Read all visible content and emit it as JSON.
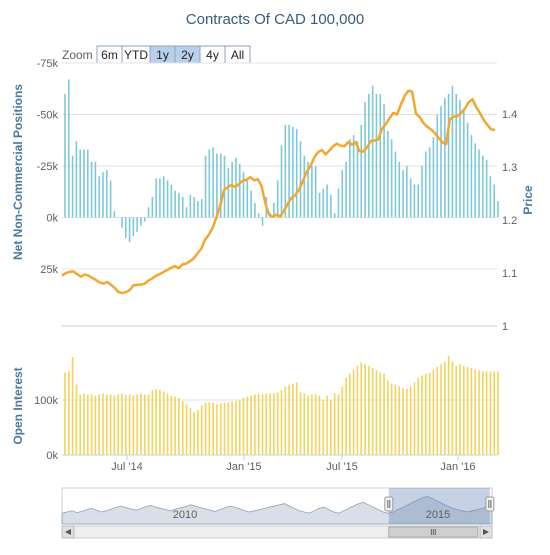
{
  "chart_data": {
    "type": "bar",
    "title": "Contracts Of CAD 100,000",
    "zoom": {
      "label": "Zoom",
      "buttons": [
        {
          "label": "6m",
          "active": false
        },
        {
          "label": "YTD",
          "active": false
        },
        {
          "label": "1y",
          "active": true
        },
        {
          "label": "2y",
          "active": true
        },
        {
          "label": "4y",
          "active": false
        },
        {
          "label": "All",
          "active": false
        }
      ]
    },
    "colors": {
      "positions_bar": "#7ec8d8",
      "price_line": "#f0a830",
      "open_interest_bar": "#f2d45c",
      "title": "#3b5a7a",
      "axis_title": "#4a7a9a",
      "grid": "#e3e3e3",
      "navigator_fill": "#b8c4d2",
      "navigator_mask": "#5b7fb0",
      "button_active": "#b8d0ec"
    },
    "panels": {
      "positions": {
        "ylabel": "Net Non-Commercial Positions",
        "ylabel_right": "Price",
        "y_ticks": [
          {
            "value": -75000,
            "label": "-75k"
          },
          {
            "value": -50000,
            "label": "-50k"
          },
          {
            "value": -25000,
            "label": "-25k"
          },
          {
            "value": 0,
            "label": "0k"
          },
          {
            "value": 25000,
            "label": "25k"
          }
        ],
        "ylim_left": [
          -75000,
          25000
        ],
        "price_ticks": [
          {
            "value": 1.4,
            "label": "1.4"
          },
          {
            "value": 1.3,
            "label": "1.3"
          },
          {
            "value": 1.2,
            "label": "1.2"
          },
          {
            "value": 1.1,
            "label": "1.1"
          },
          {
            "value": 1.0,
            "label": "1"
          }
        ],
        "ylim_right": [
          1.0,
          1.5
        ]
      },
      "open_interest": {
        "ylabel": "Open Interest",
        "y_ticks": [
          {
            "value": 100000,
            "label": "100k"
          },
          {
            "value": 0,
            "label": "0k"
          }
        ],
        "ylim": [
          0,
          200000
        ]
      }
    },
    "x_ticks": [
      "Jul '14",
      "Jan '15",
      "Jul '15",
      "Jan '16"
    ],
    "series": [
      {
        "name": "Net Non-Commercial Positions",
        "values": [
          -60000,
          -67000,
          -30000,
          -37000,
          -33000,
          -33000,
          -33000,
          -27000,
          -27000,
          -20000,
          -22000,
          -23000,
          -18000,
          -3000,
          0,
          5000,
          10000,
          12000,
          9000,
          7000,
          4000,
          2000,
          -5000,
          -10000,
          -19000,
          -19000,
          -20000,
          -18000,
          -16000,
          -13000,
          -12000,
          -10000,
          -5000,
          -11000,
          -10000,
          -8000,
          -9000,
          -30000,
          -33000,
          -34000,
          -31000,
          -31000,
          -30000,
          -24000,
          -27000,
          -29000,
          -26000,
          -22000,
          -18000,
          -13000,
          -7000,
          -2000,
          4000,
          -10000,
          -2000,
          -7000,
          -18000,
          -35000,
          -45000,
          -45000,
          -44000,
          -43000,
          -37000,
          -30000,
          -27000,
          -25000,
          -25000,
          -12000,
          -14000,
          -16000,
          -11000,
          -2000,
          -14000,
          -23000,
          -27000,
          -38000,
          -40000,
          -37000,
          -45000,
          -56000,
          -60000,
          -64000,
          -60000,
          -60000,
          -55000,
          -42000,
          -38000,
          -32000,
          -27000,
          -23000,
          -25000,
          -19000,
          -16000,
          -16000,
          -25000,
          -32000,
          -34000,
          -39000,
          -50000,
          -54000,
          -58000,
          -60000,
          -64000,
          -60000,
          -57000,
          -53000,
          -46000,
          -40000,
          -36000,
          -33000,
          -30000,
          -28000,
          -20000,
          -16000,
          -8000
        ]
      },
      {
        "name": "Price",
        "values": [
          1.095,
          1.1,
          1.102,
          1.103,
          1.098,
          1.093,
          1.097,
          1.095,
          1.091,
          1.087,
          1.082,
          1.08,
          1.083,
          1.078,
          1.072,
          1.064,
          1.062,
          1.064,
          1.068,
          1.077,
          1.078,
          1.078,
          1.08,
          1.086,
          1.09,
          1.095,
          1.098,
          1.102,
          1.106,
          1.11,
          1.113,
          1.109,
          1.116,
          1.118,
          1.122,
          1.128,
          1.137,
          1.146,
          1.163,
          1.172,
          1.185,
          1.205,
          1.226,
          1.256,
          1.262,
          1.266,
          1.262,
          1.268,
          1.274,
          1.276,
          1.281,
          1.275,
          1.277,
          1.264,
          1.232,
          1.21,
          1.206,
          1.21,
          1.207,
          1.218,
          1.231,
          1.242,
          1.247,
          1.258,
          1.274,
          1.291,
          1.302,
          1.318,
          1.328,
          1.332,
          1.324,
          1.331,
          1.339,
          1.344,
          1.34,
          1.339,
          1.347,
          1.342,
          1.347,
          1.33,
          1.329,
          1.337,
          1.349,
          1.35,
          1.352,
          1.372,
          1.381,
          1.392,
          1.402,
          1.399,
          1.418,
          1.434,
          1.444,
          1.442,
          1.401,
          1.394,
          1.383,
          1.376,
          1.371,
          1.364,
          1.355,
          1.347,
          1.343,
          1.39,
          1.395,
          1.396,
          1.402,
          1.41,
          1.422,
          1.428,
          1.413,
          1.402,
          1.389,
          1.379,
          1.371,
          1.37
        ]
      },
      {
        "name": "Open Interest",
        "values": [
          150000,
          152000,
          178000,
          128000,
          110000,
          112000,
          110000,
          110000,
          108000,
          110000,
          112000,
          110000,
          110000,
          108000,
          110000,
          112000,
          110000,
          110000,
          108000,
          110000,
          112000,
          110000,
          110000,
          118000,
          120000,
          118000,
          115000,
          112000,
          108000,
          106000,
          104000,
          98000,
          92000,
          85000,
          78000,
          82000,
          90000,
          95000,
          96000,
          95000,
          92000,
          94000,
          95000,
          96000,
          98000,
          98000,
          100000,
          104000,
          106000,
          108000,
          110000,
          112000,
          110000,
          112000,
          112000,
          112000,
          114000,
          118000,
          124000,
          128000,
          130000,
          132000,
          114000,
          112000,
          108000,
          110000,
          110000,
          108000,
          100000,
          108000,
          100000,
          112000,
          110000,
          124000,
          140000,
          148000,
          155000,
          162000,
          168000,
          165000,
          162000,
          158000,
          154000,
          150000,
          148000,
          135000,
          130000,
          128000,
          125000,
          122000,
          120000,
          125000,
          132000,
          140000,
          145000,
          148000,
          150000,
          155000,
          160000,
          165000,
          170000,
          180000,
          170000,
          162000,
          165000,
          162000,
          160000,
          158000,
          156000,
          154000,
          152000,
          152000,
          152000,
          152000,
          152000
        ]
      }
    ],
    "navigator": {
      "labels": [
        "2010",
        "2015"
      ],
      "history": [
        18,
        20,
        22,
        19,
        21,
        24,
        26,
        23,
        20,
        22,
        25,
        28,
        30,
        27,
        25,
        23,
        26,
        29,
        31,
        28,
        26,
        24,
        22,
        25,
        27,
        29,
        32,
        30,
        27,
        25,
        23,
        21,
        24,
        27,
        30,
        28,
        25,
        22,
        20,
        22,
        24,
        26,
        28,
        30,
        32,
        34,
        30,
        26,
        22,
        20,
        18,
        22,
        26,
        28,
        24,
        20,
        18,
        22,
        26,
        30,
        34,
        36,
        32,
        28,
        24,
        20,
        18,
        20,
        24,
        28,
        32,
        36,
        40,
        44,
        46,
        42,
        38,
        34,
        30,
        26,
        24,
        22,
        20,
        22,
        24,
        26,
        28,
        30
      ],
      "selection": [
        0.76,
        0.995
      ]
    }
  }
}
